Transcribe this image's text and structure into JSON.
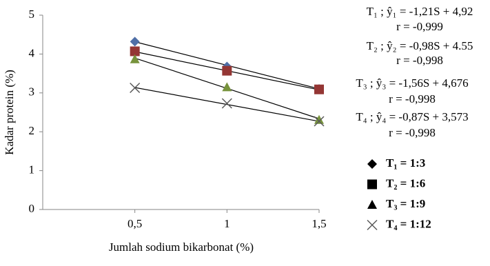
{
  "chart_data": {
    "type": "scatter",
    "x_label": "Jumlah sodium bikarbonat (%)",
    "y_label": "Kadar protein (%)",
    "x": [
      0.5,
      1,
      1.5
    ],
    "xlim": [
      0,
      1.5
    ],
    "xticks": [
      {
        "value": 0.5,
        "label": "0,5"
      },
      1,
      {
        "value": 1.5,
        "label": "1,5"
      }
    ],
    "ylim": [
      0,
      5
    ],
    "yticks": [
      0,
      1,
      2,
      3,
      4,
      5
    ],
    "grid": false,
    "trend_x": [
      0.5,
      1.5
    ],
    "series": [
      {
        "name": "T₁ = 1:3",
        "color": "#4f6fa7",
        "marker": "diamond",
        "values": [
          4.32,
          3.68,
          3.1
        ],
        "trend_values": [
          4.315,
          3.105
        ]
      },
      {
        "name": "T₂ = 1:6",
        "color": "#943634",
        "marker": "square",
        "values": [
          4.07,
          3.57,
          3.09
        ],
        "trend_values": [
          4.06,
          3.08
        ]
      },
      {
        "name": "T₃ = 1:9",
        "color": "#77933c",
        "marker": "triangle",
        "values": [
          3.87,
          3.15,
          2.31
        ],
        "trend_values": [
          3.896,
          2.336
        ]
      },
      {
        "name": "T₄ = 1:12",
        "color": "#595959",
        "marker": "x",
        "values": [
          3.13,
          2.73,
          2.27
        ],
        "trend_values": [
          3.138,
          2.268
        ]
      }
    ],
    "annotations": [
      "T₁ ; ŷ₁ = -1,21S + 4,92",
      "r = -0,999",
      "T₂ ; ŷ₂ = -0,98S + 4.55",
      "r = -0,998",
      "T₃ ; ŷ₃ = -1,56S + 4,676",
      "r = -0,998",
      "T₄ ; ŷ₄ = -0,87S + 3,573",
      "r = -0,998"
    ]
  }
}
